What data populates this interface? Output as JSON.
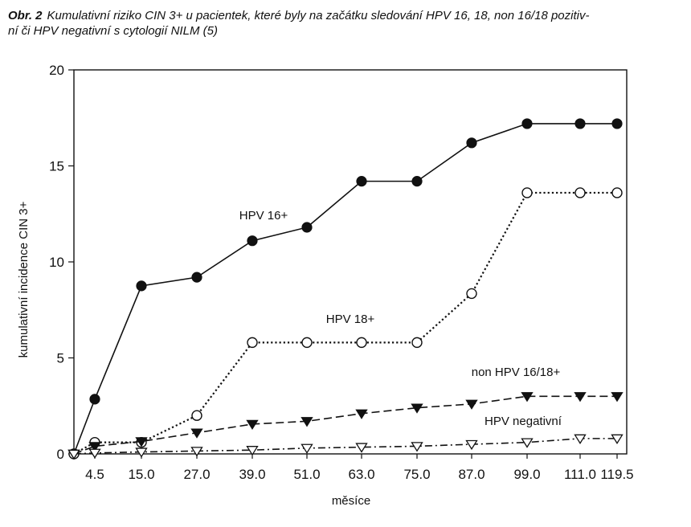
{
  "figure": {
    "label": "Obr. 2",
    "caption": "Kumulativní riziko CIN 3+ u pacientek, které byly na začátku sledování HPV 16, 18, non 16/18 pozitiv-\nní či HPV negativní s cytologií NILM (5)"
  },
  "chart_data": {
    "type": "line",
    "title": "",
    "xlabel": "měsíce",
    "ylabel": "kumulativní incidence CIN 3+",
    "ylim": [
      0,
      20
    ],
    "yticks": [
      "0",
      "5",
      "10",
      "15",
      "20"
    ],
    "x_tick_labels": [
      "4.5",
      "15.0",
      "27.0",
      "39.0",
      "51.0",
      "63.0",
      "75.0",
      "87.0",
      "99.0",
      "111.0",
      "119.5"
    ],
    "grid": false,
    "legend": "inline labels",
    "series": [
      {
        "name": "HPV 16+",
        "marker": "filled-circle",
        "line": "solid",
        "color": "#111111",
        "x": [
          0,
          4.5,
          15.0,
          27.0,
          39.0,
          51.0,
          63.0,
          75.0,
          87.0,
          99.0,
          111.0,
          119.5
        ],
        "values": [
          0,
          2.85,
          8.75,
          9.2,
          11.1,
          11.8,
          14.2,
          14.2,
          16.2,
          17.2,
          17.2,
          17.2
        ]
      },
      {
        "name": "HPV 18+",
        "marker": "open-circle",
        "line": "dotted",
        "color": "#111111",
        "x": [
          0,
          4.5,
          15.0,
          27.0,
          39.0,
          51.0,
          63.0,
          75.0,
          87.0,
          99.0,
          111.0,
          119.5
        ],
        "values": [
          0,
          0.6,
          0.6,
          2.0,
          5.8,
          5.8,
          5.8,
          5.8,
          8.35,
          13.6,
          13.6,
          13.6
        ]
      },
      {
        "name": "non HPV 16/18+",
        "marker": "filled-triangle-down",
        "line": "dashed",
        "color": "#111111",
        "x": [
          0,
          4.5,
          15.0,
          27.0,
          39.0,
          51.0,
          63.0,
          75.0,
          87.0,
          99.0,
          111.0,
          119.5
        ],
        "values": [
          0,
          0.4,
          0.65,
          1.1,
          1.55,
          1.7,
          2.1,
          2.4,
          2.6,
          3.0,
          3.0,
          3.0
        ]
      },
      {
        "name": "HPV negativní",
        "marker": "open-triangle-down",
        "line": "dash-dot",
        "color": "#111111",
        "x": [
          0,
          4.5,
          15.0,
          27.0,
          39.0,
          51.0,
          63.0,
          75.0,
          87.0,
          99.0,
          111.0,
          119.5
        ],
        "values": [
          0,
          0.05,
          0.1,
          0.15,
          0.2,
          0.3,
          0.35,
          0.4,
          0.5,
          0.6,
          0.8,
          0.8
        ]
      }
    ]
  }
}
